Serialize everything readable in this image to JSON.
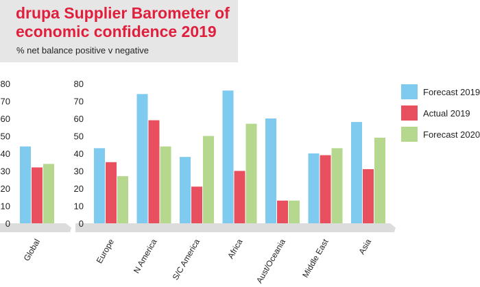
{
  "title_line1": "drupa Supplier Barometer of",
  "title_line2": "economic confidence 2019",
  "subtitle": "% net balance positive v negative",
  "chart_data": [
    {
      "type": "bar",
      "categories": [
        "Global"
      ],
      "series": [
        {
          "name": "Forecast 2019",
          "values": [
            44
          ],
          "color": "#7fcbf0"
        },
        {
          "name": "Actual 2019",
          "values": [
            32
          ],
          "color": "#e9505f"
        },
        {
          "name": "Forecast 2020",
          "values": [
            34
          ],
          "color": "#b5d88e"
        }
      ],
      "yticks": [
        0,
        10,
        20,
        30,
        40,
        50,
        60,
        70,
        80
      ],
      "ylim": [
        0,
        80
      ],
      "grid": false
    },
    {
      "type": "bar",
      "categories": [
        "Europe",
        "N America",
        "S/C America",
        "Africa",
        "Aust/Oceania",
        "Middle East",
        "Asia"
      ],
      "series": [
        {
          "name": "Forecast 2019",
          "values": [
            43,
            74,
            38,
            76,
            60,
            40,
            58
          ],
          "color": "#7fcbf0"
        },
        {
          "name": "Actual 2019",
          "values": [
            35,
            59,
            21,
            30,
            13,
            39,
            31
          ],
          "color": "#e9505f"
        },
        {
          "name": "Forecast 2020",
          "values": [
            27,
            44,
            50,
            57,
            13,
            43,
            49
          ],
          "color": "#b5d88e"
        }
      ],
      "yticks": [
        0,
        10,
        20,
        30,
        40,
        50,
        60,
        70,
        80
      ],
      "ylim": [
        0,
        80
      ],
      "grid": false,
      "legend": "right"
    }
  ],
  "legend": [
    {
      "label": "Forecast 2019",
      "color": "#7fcbf0"
    },
    {
      "label": "Actual 2019",
      "color": "#e9505f"
    },
    {
      "label": "Forecast 2020",
      "color": "#b5d88e"
    }
  ]
}
